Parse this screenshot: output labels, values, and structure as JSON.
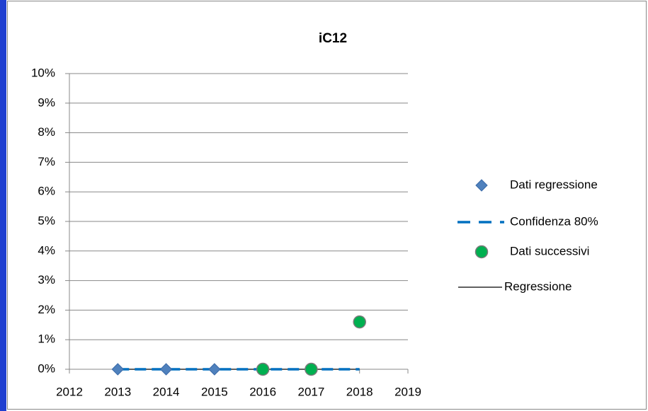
{
  "chart_data": {
    "type": "scatter",
    "title": "iC12",
    "xlim": [
      2012,
      2019
    ],
    "xticks": [
      2012,
      2013,
      2014,
      2015,
      2016,
      2017,
      2018,
      2019
    ],
    "ylim": [
      0,
      10
    ],
    "yticks": [
      {
        "value": 0,
        "label": "0%"
      },
      {
        "value": 1,
        "label": "1%"
      },
      {
        "value": 2,
        "label": "2%"
      },
      {
        "value": 3,
        "label": "3%"
      },
      {
        "value": 4,
        "label": "4%"
      },
      {
        "value": 5,
        "label": "5%"
      },
      {
        "value": 6,
        "label": "6%"
      },
      {
        "value": 7,
        "label": "7%"
      },
      {
        "value": 8,
        "label": "8%"
      },
      {
        "value": 9,
        "label": "9%"
      },
      {
        "value": 10,
        "label": "10%"
      }
    ],
    "grid": true,
    "legend": "right",
    "series": [
      {
        "name": "Dati regressione",
        "color": "#4f81bd",
        "marker": "diamond",
        "x": [
          2013,
          2014,
          2015
        ],
        "values": [
          0,
          0,
          0
        ]
      },
      {
        "name": "Confidenza 80%",
        "color": "#0070c0",
        "line": "dashed",
        "x": [
          2013,
          2014,
          2015,
          2016,
          2017,
          2018
        ],
        "values": [
          0,
          0,
          0,
          0,
          0,
          0
        ]
      },
      {
        "name": "Dati successivi",
        "color": "#00b050",
        "marker": "circle",
        "x": [
          2016,
          2017,
          2018
        ],
        "values": [
          0,
          0,
          1.6
        ]
      },
      {
        "name": "Regressione",
        "color": "#000000",
        "line": "solid",
        "x": [
          2013,
          2018
        ],
        "values": [
          0,
          0
        ]
      }
    ]
  }
}
